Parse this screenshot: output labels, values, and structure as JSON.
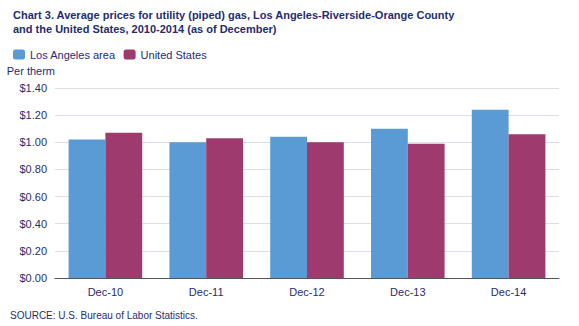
{
  "chart_data": {
    "type": "bar",
    "title": "Chart 3. Average prices for utility (piped) gas, Los Angeles-Riverside-Orange County",
    "subtitle": "and the United States, 2010-2014 (as of December)",
    "ylabel": "Per therm",
    "annotations": [
      "SOURCE: U.S. Bureau of Labor Statistics."
    ],
    "categories": [
      "Dec-10",
      "Dec-11",
      "Dec-12",
      "Dec-13",
      "Dec-14"
    ],
    "series": [
      {
        "name": "Los Angeles area",
        "color": "#5B9BD5",
        "values": [
          1.02,
          1.0,
          1.04,
          1.1,
          1.24
        ]
      },
      {
        "name": "United States",
        "color": "#9E3A6E",
        "values": [
          1.07,
          1.03,
          1.0,
          0.99,
          1.06
        ]
      }
    ],
    "ylim": [
      0,
      1.4
    ],
    "yticks": [
      {
        "value": 0.0,
        "label": "$0.00"
      },
      {
        "value": 0.2,
        "label": "$0.20"
      },
      {
        "value": 0.4,
        "label": "$0.40"
      },
      {
        "value": 0.6,
        "label": "$0.60"
      },
      {
        "value": 0.8,
        "label": "$0.80"
      },
      {
        "value": 1.0,
        "label": "$1.00"
      },
      {
        "value": 1.2,
        "label": "$1.20"
      },
      {
        "value": 1.4,
        "label": "$1.40"
      }
    ],
    "grid": true,
    "legend": "upper left"
  }
}
